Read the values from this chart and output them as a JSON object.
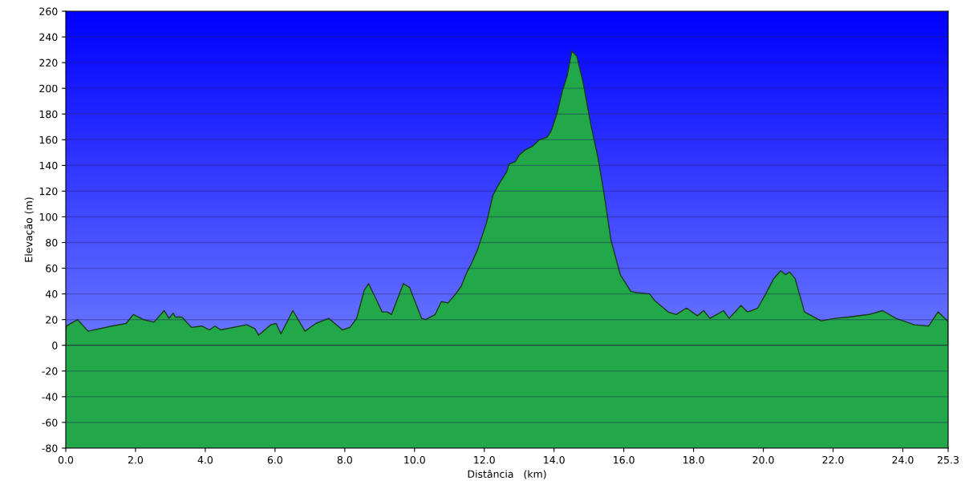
{
  "chart_data": {
    "type": "area",
    "xlabel": "Distância   (km)",
    "ylabel": "Elevação (m)",
    "x": [
      0.0,
      0.02,
      0.34,
      0.64,
      1.32,
      1.73,
      1.94,
      2.23,
      2.53,
      2.82,
      2.96,
      3.08,
      3.14,
      3.33,
      3.6,
      3.9,
      4.12,
      4.28,
      4.44,
      5.19,
      5.42,
      5.53,
      5.88,
      6.03,
      6.17,
      6.51,
      6.86,
      7.17,
      7.54,
      7.93,
      8.15,
      8.34,
      8.56,
      8.68,
      8.88,
      9.07,
      9.22,
      9.34,
      9.68,
      9.86,
      10.2,
      10.32,
      10.59,
      10.77,
      10.96,
      11.18,
      11.34,
      11.5,
      11.62,
      11.8,
      12.07,
      12.25,
      12.41,
      12.64,
      12.71,
      12.89,
      13.0,
      13.17,
      13.39,
      13.58,
      13.8,
      13.92,
      14.08,
      14.24,
      14.38,
      14.51,
      14.65,
      14.83,
      15.06,
      15.26,
      15.44,
      15.63,
      15.9,
      16.2,
      16.36,
      16.74,
      16.88,
      17.27,
      17.5,
      17.8,
      18.11,
      18.29,
      18.47,
      18.86,
      19.02,
      19.36,
      19.54,
      19.66,
      19.84,
      20.07,
      20.3,
      20.5,
      20.64,
      20.75,
      20.91,
      21.18,
      21.66,
      22.05,
      22.44,
      23.03,
      23.42,
      23.8,
      24.33,
      24.74,
      25.01,
      25.28,
      25.3
    ],
    "series": [
      {
        "color": "#22a848",
        "values": [
          10,
          15,
          20,
          11,
          15,
          17,
          24,
          20,
          18,
          27,
          21,
          25,
          22,
          22,
          14,
          15,
          12,
          15,
          12,
          16,
          13,
          8,
          16,
          17,
          9,
          27,
          11,
          17,
          21,
          12,
          14,
          21,
          43,
          48,
          37,
          26,
          26,
          24,
          48,
          45,
          21,
          20,
          24,
          34,
          33,
          40,
          46,
          57,
          63,
          74,
          96,
          117,
          125,
          135,
          141,
          143,
          148,
          152,
          155,
          160,
          162,
          167,
          180,
          198,
          210,
          229,
          225,
          205,
          171,
          146,
          117,
          82,
          55,
          42,
          41,
          40,
          35,
          26,
          24,
          29,
          23,
          27,
          21,
          27,
          21,
          31,
          26,
          27,
          29,
          40,
          52,
          58,
          55,
          57,
          52,
          26,
          19,
          21,
          22,
          24,
          27,
          21,
          16,
          15,
          26,
          19,
          19
        ]
      }
    ],
    "xlim": [
      0,
      25.3
    ],
    "ylim": [
      -80,
      260
    ],
    "xticks": [
      {
        "value": 0,
        "label": "0.0"
      },
      {
        "value": 2,
        "label": "2.0"
      },
      {
        "value": 4,
        "label": "4.0"
      },
      {
        "value": 6,
        "label": "6.0"
      },
      {
        "value": 8,
        "label": "8.0"
      },
      {
        "value": 10,
        "label": "10.0"
      },
      {
        "value": 12,
        "label": "12.0"
      },
      {
        "value": 14,
        "label": "14.0"
      },
      {
        "value": 16,
        "label": "16.0"
      },
      {
        "value": 18,
        "label": "18.0"
      },
      {
        "value": 20,
        "label": "20.0"
      },
      {
        "value": 22,
        "label": "22.0"
      },
      {
        "value": 24,
        "label": "24.0"
      },
      25.3
    ],
    "yticks": [
      -80,
      -60,
      -40,
      -20,
      0,
      20,
      40,
      60,
      80,
      100,
      120,
      140,
      160,
      180,
      200,
      220,
      240,
      260
    ],
    "bands": [
      {
        "axis": "y",
        "from": -80,
        "to": 0,
        "color": "#22a848"
      }
    ],
    "grid": "y"
  }
}
